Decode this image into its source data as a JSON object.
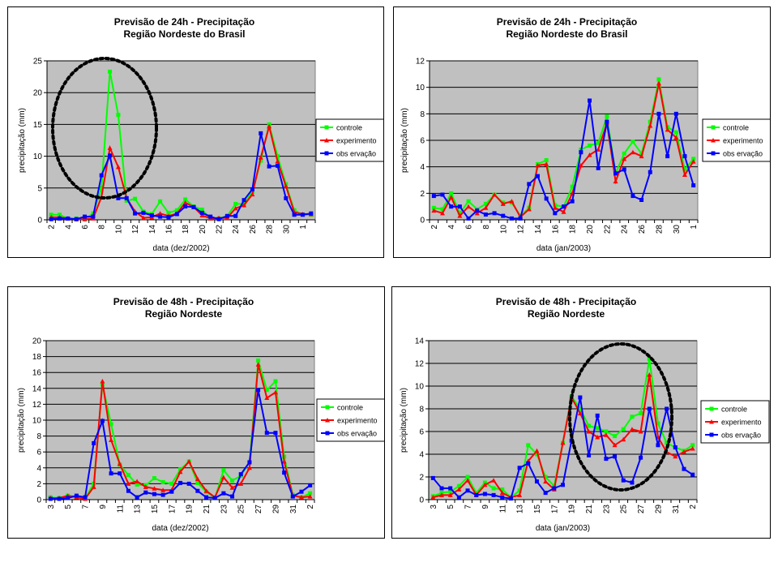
{
  "colors": {
    "controle": "#00ff00",
    "experimento": "#ff0000",
    "observacao": "#0000ff",
    "plot_bg": "#c0c0c0",
    "gridline": "#000000",
    "highlight_ellipse": "#000000"
  },
  "chart_data": [
    {
      "type": "line",
      "title": "Previsão de 24h - Precipitação",
      "subtitle": "Região Nordeste do Brasil",
      "xlabel": "data (dez/2002)",
      "ylabel": "precipitação (mm)",
      "ylim": [
        0,
        25
      ],
      "yticks": [
        0,
        5,
        10,
        15,
        20,
        25
      ],
      "grid": true,
      "legend": "right",
      "highlight": "dashed ellipse around 7-12 dez peak",
      "categories": [
        "2",
        "3",
        "4",
        "5",
        "6",
        "7",
        "8",
        "9",
        "10",
        "11",
        "12",
        "13",
        "14",
        "15",
        "16",
        "17",
        "18",
        "19",
        "20",
        "21",
        "22",
        "23",
        "24",
        "25",
        "26",
        "27",
        "28",
        "29",
        "30",
        "31",
        "1",
        "2"
      ],
      "xticklabels": [
        "2",
        "",
        "4",
        "",
        "6",
        "",
        "8",
        "",
        "10",
        "",
        "12",
        "",
        "14",
        "",
        "16",
        "",
        "18",
        "",
        "20",
        "",
        "22",
        "",
        "24",
        "",
        "26",
        "",
        "28",
        "",
        "30",
        "",
        "1",
        ""
      ],
      "series": [
        {
          "name": "controle",
          "marker": "square",
          "values": [
            0.8,
            0.8,
            0.2,
            0.2,
            0.1,
            1.0,
            5.0,
            23.3,
            16.5,
            3.0,
            3.3,
            1.3,
            0.9,
            2.9,
            1.1,
            1.5,
            3.2,
            2.1,
            1.6,
            0.2,
            0.2,
            0.6,
            2.5,
            2.5,
            4.4,
            9.3,
            15.0,
            10.0,
            5.6,
            1.5,
            0.8,
            0.8
          ]
        },
        {
          "name": "experimento",
          "marker": "triangle",
          "values": [
            0.4,
            0.4,
            0.2,
            0.1,
            0.1,
            0.2,
            3.6,
            11.3,
            8.3,
            3.4,
            1.3,
            0.3,
            0.4,
            1.0,
            0.6,
            1.0,
            2.7,
            2.0,
            0.7,
            0.2,
            0.3,
            0.3,
            1.8,
            2.3,
            4.0,
            9.8,
            14.7,
            9.2,
            5.3,
            1.2,
            0.9,
            0.9
          ]
        },
        {
          "name": "obs ervação",
          "marker": "square",
          "values": [
            0.1,
            0.2,
            0.2,
            0.1,
            0.5,
            0.5,
            7.0,
            10.1,
            3.4,
            3.4,
            1.0,
            1.1,
            0.7,
            0.5,
            0.4,
            0.9,
            2.1,
            2.0,
            1.1,
            0.5,
            0.1,
            0.6,
            0.6,
            3.1,
            4.8,
            13.6,
            8.4,
            8.5,
            3.4,
            0.8,
            0.8,
            1.0
          ]
        }
      ]
    },
    {
      "type": "line",
      "title": "Previsão de 24h - Precipitação",
      "subtitle": "Região Nordeste do Brasil",
      "xlabel": "data (jan/2003)",
      "ylabel": "precipitação (mm)",
      "ylim": [
        0,
        12
      ],
      "yticks": [
        0,
        2,
        4,
        6,
        8,
        10,
        12
      ],
      "grid": true,
      "legend": "right",
      "categories": [
        "2",
        "3",
        "4",
        "5",
        "6",
        "7",
        "8",
        "9",
        "10",
        "11",
        "12",
        "13",
        "14",
        "15",
        "16",
        "17",
        "18",
        "19",
        "20",
        "21",
        "22",
        "23",
        "24",
        "25",
        "26",
        "27",
        "28",
        "29",
        "30",
        "31",
        "1"
      ],
      "xticklabels": [
        "2",
        "",
        "4",
        "",
        "6",
        "",
        "8",
        "",
        "10",
        "",
        "12",
        "",
        "14",
        "",
        "16",
        "",
        "18",
        "",
        "20",
        "",
        "22",
        "",
        "24",
        "",
        "26",
        "",
        "28",
        "",
        "30",
        "",
        "1"
      ],
      "series": [
        {
          "name": "controle",
          "marker": "square",
          "values": [
            0.9,
            0.8,
            2.0,
            0.5,
            1.4,
            0.8,
            1.2,
            1.9,
            1.3,
            1.3,
            0.3,
            0.9,
            4.2,
            4.5,
            1.1,
            1.0,
            2.5,
            5.3,
            5.6,
            5.8,
            7.8,
            3.5,
            5.0,
            5.9,
            5.0,
            7.4,
            10.6,
            7.0,
            6.6,
            3.8,
            4.6
          ]
        },
        {
          "name": "experimento",
          "marker": "triangle",
          "values": [
            0.7,
            0.5,
            1.7,
            0.3,
            1.0,
            0.5,
            0.9,
            1.9,
            1.2,
            1.4,
            0.2,
            0.8,
            4.1,
            4.2,
            0.9,
            0.6,
            2.0,
            4.1,
            4.9,
            5.3,
            7.3,
            2.9,
            4.6,
            5.1,
            4.8,
            7.1,
            10.3,
            6.8,
            6.2,
            3.4,
            4.4
          ]
        },
        {
          "name": "obs ervação",
          "marker": "square",
          "values": [
            1.8,
            1.9,
            1.0,
            1.0,
            0.1,
            0.7,
            0.4,
            0.5,
            0.3,
            0.1,
            0.1,
            2.7,
            3.3,
            1.6,
            0.5,
            1.0,
            1.4,
            5.1,
            9.0,
            3.9,
            7.4,
            3.5,
            3.8,
            1.8,
            1.5,
            3.6,
            8.0,
            4.8,
            8.0,
            4.8,
            2.6
          ]
        }
      ]
    },
    {
      "type": "line",
      "title": "Previsão de 48h - Precipitação",
      "subtitle": "Região Nordeste",
      "xlabel": "data (dez/2002)",
      "ylabel": "precipitação (mm)",
      "ylim": [
        0,
        20
      ],
      "yticks": [
        0,
        2,
        4,
        6,
        8,
        10,
        12,
        14,
        16,
        18,
        20
      ],
      "grid": true,
      "legend": "right",
      "categories": [
        "3",
        "4",
        "5",
        "6",
        "7",
        "8",
        "9",
        "10",
        "11",
        "12",
        "13",
        "14",
        "15",
        "16",
        "17",
        "18",
        "19",
        "20",
        "21",
        "22",
        "23",
        "24",
        "25",
        "26",
        "27",
        "28",
        "29",
        "30",
        "31",
        "1",
        "2"
      ],
      "xticklabels": [
        "3",
        "",
        "5",
        "",
        "7",
        "",
        "9",
        "",
        "11",
        "",
        "13",
        "",
        "15",
        "",
        "17",
        "",
        "19",
        "",
        "21",
        "",
        "23",
        "",
        "25",
        "",
        "27",
        "",
        "29",
        "",
        "31",
        "",
        "2"
      ],
      "series": [
        {
          "name": "controle",
          "marker": "square",
          "values": [
            0.3,
            0.2,
            0.5,
            0.4,
            0.2,
            2.0,
            14.5,
            9.5,
            4.4,
            3.1,
            1.9,
            1.8,
            2.7,
            2.2,
            2.0,
            3.8,
            4.8,
            2.1,
            1.0,
            0.2,
            3.7,
            2.4,
            3.0,
            4.7,
            17.5,
            13.8,
            14.9,
            5.4,
            0.6,
            0.3,
            0.8
          ]
        },
        {
          "name": "experimento",
          "marker": "triangle",
          "values": [
            0.2,
            0.2,
            0.5,
            0.3,
            0.1,
            1.6,
            14.9,
            7.5,
            4.5,
            2.0,
            2.3,
            1.6,
            1.4,
            1.2,
            1.2,
            3.5,
            4.8,
            2.6,
            1.1,
            0.3,
            2.8,
            1.5,
            2.0,
            4.0,
            17.0,
            12.8,
            13.5,
            4.8,
            0.5,
            0.3,
            0.4
          ]
        },
        {
          "name": "obs ervação",
          "marker": "square",
          "values": [
            0.1,
            0.1,
            0.2,
            0.5,
            0.3,
            7.1,
            9.9,
            3.3,
            3.3,
            1.1,
            0.3,
            0.9,
            0.7,
            0.6,
            1.0,
            2.1,
            2.0,
            1.1,
            0.3,
            0.2,
            0.8,
            0.4,
            3.2,
            4.7,
            13.8,
            8.4,
            8.4,
            3.4,
            0.4,
            1.0,
            1.8
          ]
        }
      ]
    },
    {
      "type": "line",
      "title": "Previsão de 48h - Precipitação",
      "subtitle": "Região Nordeste",
      "xlabel": "data (jan/2003)",
      "ylabel": "precipitação (mm)",
      "ylim": [
        0,
        14
      ],
      "yticks": [
        0,
        2,
        4,
        6,
        8,
        10,
        12,
        14
      ],
      "grid": true,
      "legend": "right",
      "highlight": "dashed ellipse around 21-31 jan",
      "categories": [
        "3",
        "4",
        "5",
        "6",
        "7",
        "8",
        "9",
        "10",
        "11",
        "12",
        "13",
        "14",
        "15",
        "16",
        "17",
        "18",
        "19",
        "20",
        "21",
        "22",
        "23",
        "24",
        "25",
        "26",
        "27",
        "28",
        "29",
        "30",
        "31",
        "1",
        "2"
      ],
      "xticklabels": [
        "3",
        "",
        "5",
        "",
        "7",
        "",
        "9",
        "",
        "11",
        "",
        "13",
        "",
        "15",
        "",
        "17",
        "",
        "19",
        "",
        "21",
        "",
        "23",
        "",
        "25",
        "",
        "27",
        "",
        "29",
        "",
        "31",
        "",
        "2"
      ],
      "series": [
        {
          "name": "controle",
          "marker": "square",
          "values": [
            0.3,
            0.6,
            0.7,
            1.2,
            2.0,
            0.6,
            1.5,
            1.0,
            0.9,
            0.2,
            0.8,
            4.8,
            4.0,
            2.0,
            1.2,
            5.0,
            9.1,
            8.0,
            6.5,
            6.3,
            6.0,
            5.6,
            6.2,
            7.3,
            7.6,
            12.4,
            6.7,
            5.0,
            4.6,
            4.3,
            4.8
          ]
        },
        {
          "name": "experimento",
          "marker": "triangle",
          "values": [
            0.2,
            0.4,
            0.4,
            0.9,
            1.7,
            0.4,
            1.3,
            1.7,
            0.6,
            0.2,
            0.4,
            3.4,
            4.3,
            1.6,
            0.9,
            5.0,
            9.0,
            7.6,
            6.0,
            5.5,
            5.7,
            4.8,
            5.3,
            6.2,
            6.0,
            11.0,
            5.5,
            4.2,
            3.8,
            4.2,
            4.5
          ]
        },
        {
          "name": "obs ervação",
          "marker": "square",
          "values": [
            1.9,
            1.0,
            1.0,
            0.2,
            0.8,
            0.4,
            0.5,
            0.4,
            0.2,
            0.1,
            2.8,
            3.2,
            1.6,
            0.6,
            1.0,
            1.3,
            5.2,
            9.0,
            3.9,
            7.4,
            3.6,
            3.8,
            1.7,
            1.5,
            3.7,
            8.0,
            4.8,
            8.0,
            4.6,
            2.7,
            2.2
          ]
        }
      ]
    }
  ],
  "legend_labels": [
    "controle",
    "experimento",
    "obs ervação"
  ]
}
